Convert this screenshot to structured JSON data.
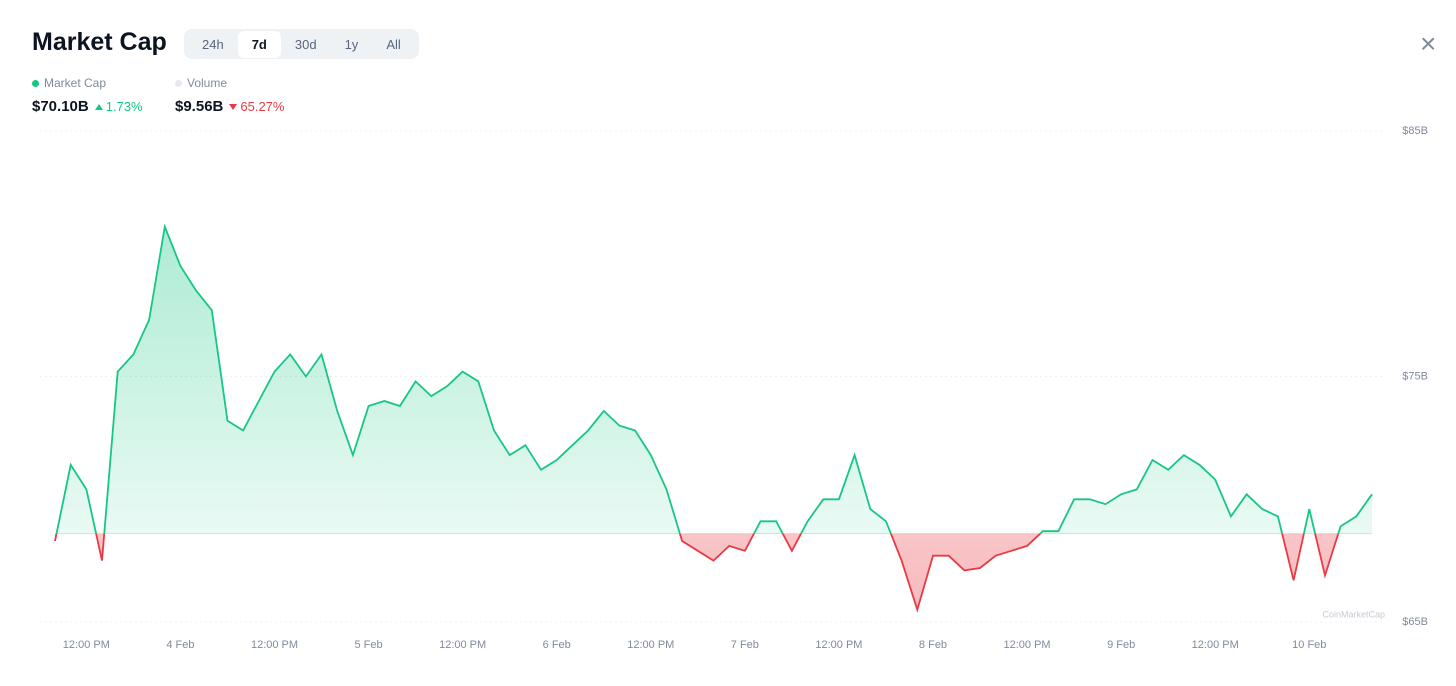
{
  "header": {
    "title": "Market Cap",
    "tabs": [
      "24h",
      "7d",
      "30d",
      "1y",
      "All"
    ],
    "active_tab": 1,
    "close": "×"
  },
  "stats": [
    {
      "label": "Market Cap",
      "dot_color": "#16c784",
      "value": "$70.10B",
      "change": "1.73%",
      "direction": "up"
    },
    {
      "label": "Volume",
      "dot_color": "#e6e8ee",
      "value": "$9.56B",
      "change": "65.27%",
      "direction": "down"
    }
  ],
  "chart_data": {
    "type": "baseline-area",
    "categories": [
      null,
      null,
      "12:00 PM",
      null,
      null,
      null,
      null,
      null,
      "4 Feb",
      null,
      null,
      null,
      null,
      null,
      "12:00 PM",
      null,
      null,
      null,
      null,
      null,
      "5 Feb",
      null,
      null,
      null,
      null,
      null,
      "12:00 PM",
      null,
      null,
      null,
      null,
      null,
      "6 Feb",
      null,
      null,
      null,
      null,
      null,
      "12:00 PM",
      null,
      null,
      null,
      null,
      null,
      "7 Feb",
      null,
      null,
      null,
      null,
      null,
      "12:00 PM",
      null,
      null,
      null,
      null,
      null,
      "8 Feb",
      null,
      null,
      null,
      null,
      null,
      "12:00 PM",
      null,
      null,
      null,
      null,
      null,
      "9 Feb",
      null,
      null,
      null,
      null,
      null,
      "12:00 PM",
      null,
      null,
      null,
      null,
      null,
      "10 Feb",
      null,
      null,
      null,
      null
    ],
    "values": [
      68.3,
      71.4,
      70.4,
      67.5,
      75.2,
      75.9,
      77.3,
      81.1,
      79.5,
      78.5,
      77.7,
      73.2,
      72.8,
      74.0,
      75.2,
      75.9,
      75.0,
      75.9,
      73.6,
      71.8,
      73.8,
      74.0,
      73.8,
      74.8,
      74.2,
      74.6,
      75.2,
      74.8,
      72.8,
      71.8,
      72.2,
      71.2,
      71.6,
      72.2,
      72.8,
      73.6,
      73.0,
      72.8,
      71.8,
      70.4,
      68.3,
      67.9,
      67.5,
      68.1,
      67.9,
      69.1,
      69.1,
      67.9,
      69.1,
      70.0,
      70.0,
      71.8,
      69.6,
      69.1,
      67.5,
      65.5,
      67.7,
      67.7,
      67.1,
      67.2,
      67.7,
      67.9,
      68.1,
      68.7,
      68.7,
      70.0,
      70.0,
      69.8,
      70.2,
      70.4,
      71.6,
      71.2,
      71.8,
      71.4,
      70.8,
      69.3,
      70.2,
      69.6,
      69.3,
      66.7,
      69.6,
      66.9,
      68.9,
      69.3,
      70.2
    ],
    "baseline": 68.6,
    "up_color": "#16c784",
    "down_color": "#ea3943",
    "ylim": [
      65,
      85
    ],
    "yticks": [
      {
        "value": 65,
        "label": "$65B"
      },
      {
        "value": 75,
        "label": "$75B"
      },
      {
        "value": 85,
        "label": "$85B"
      }
    ],
    "grid": true,
    "watermark": "CoinMarketCap"
  }
}
